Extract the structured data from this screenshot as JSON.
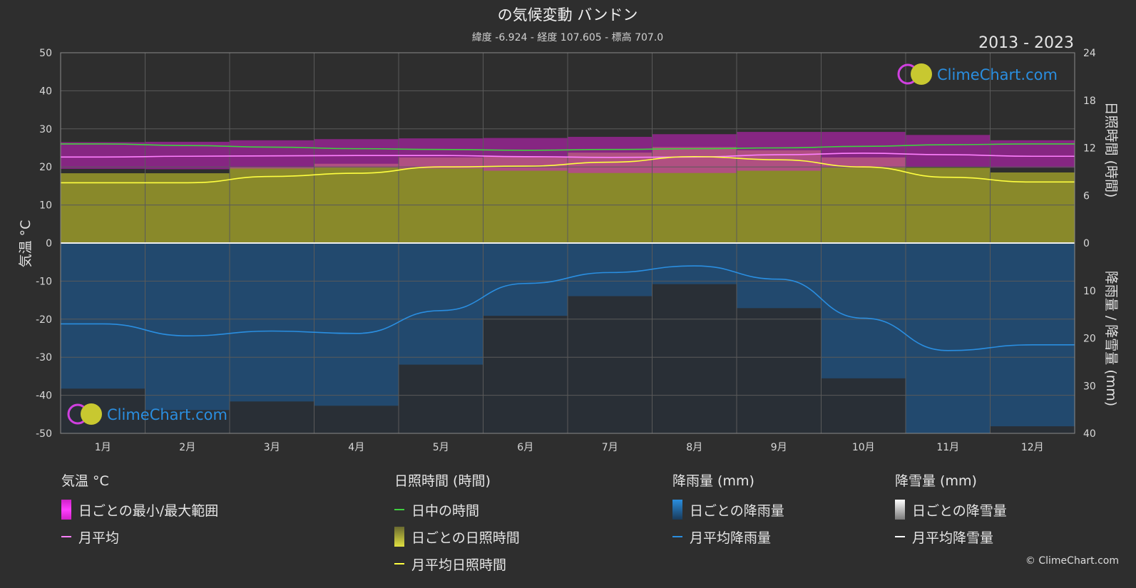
{
  "header": {
    "title": "の気候変動 バンドン",
    "subtitle": "緯度 -6.924 - 経度 107.605 - 標高 707.0",
    "years": "2013 - 2023"
  },
  "logo_text": "ClimeChart.com",
  "copyright": "© ClimeChart.com",
  "colors": {
    "background": "#2e2e2e",
    "temp_band": "#d020c8",
    "temp_mean": "#ff80ff",
    "daylight": "#40d040",
    "sunshine_band": "#a8a82a",
    "sunshine_mean": "#ffff40",
    "rain": "#1f6fb8",
    "rain_mean": "#2a8ee0",
    "snow_mean": "#ffffff",
    "logo": "#2a8ee0"
  },
  "chart_data": {
    "type": "line",
    "months": [
      "1月",
      "2月",
      "3月",
      "4月",
      "5月",
      "6月",
      "7月",
      "8月",
      "9月",
      "10月",
      "11月",
      "12月"
    ],
    "left_axis": {
      "label": "気温 °C",
      "range": [
        -50,
        50
      ],
      "ticks": [
        "50",
        "40",
        "30",
        "20",
        "10",
        "0",
        "-10",
        "-20",
        "-30",
        "-40",
        "-50"
      ]
    },
    "right_axis_top": {
      "label": "日照時間 (時間)",
      "range": [
        0,
        24
      ],
      "ticks": [
        "24",
        "18",
        "12",
        "6",
        "0"
      ]
    },
    "right_axis_bottom": {
      "label": "降雨量 / 降雪量 (mm)",
      "range": [
        0,
        40
      ],
      "ticks": [
        "0",
        "10",
        "20",
        "30",
        "40"
      ]
    },
    "series": [
      {
        "name": "日中の時間",
        "unit": "hours",
        "values": [
          12.5,
          12.3,
          12.1,
          11.9,
          11.8,
          11.7,
          11.8,
          11.9,
          12.0,
          12.2,
          12.4,
          12.5
        ]
      },
      {
        "name": "月平均日照時間",
        "unit": "hours",
        "values": [
          7.6,
          7.6,
          8.4,
          8.8,
          9.6,
          9.7,
          10.2,
          10.9,
          10.5,
          9.6,
          8.3,
          7.7
        ]
      },
      {
        "name": "月平均",
        "unit": "°C",
        "values": [
          22.6,
          22.8,
          22.9,
          23.0,
          23.0,
          22.7,
          22.5,
          22.6,
          23.2,
          23.6,
          23.2,
          22.8
        ]
      },
      {
        "name": "日ごとの最小/最大範囲",
        "unit": "°C",
        "min": [
          19.5,
          19.4,
          19.6,
          19.8,
          19.6,
          19.0,
          18.4,
          18.4,
          19.0,
          19.8,
          20.0,
          19.8
        ],
        "max": [
          26.5,
          26.6,
          27.0,
          27.3,
          27.5,
          27.6,
          27.9,
          28.6,
          29.2,
          29.2,
          28.4,
          27.0
        ]
      },
      {
        "name": "月平均降雨量",
        "unit": "mm",
        "values": [
          17.0,
          19.5,
          18.5,
          19.0,
          14.2,
          8.5,
          6.2,
          4.8,
          7.6,
          15.8,
          22.6,
          21.4
        ]
      },
      {
        "name": "月平均降雪量",
        "unit": "mm",
        "values": [
          0,
          0,
          0,
          0,
          0,
          0,
          0,
          0,
          0,
          0,
          0,
          0
        ]
      }
    ]
  },
  "legend": {
    "temp": {
      "title": "気温 °C",
      "items": [
        "日ごとの最小/最大範囲",
        "月平均"
      ]
    },
    "sun": {
      "title": "日照時間 (時間)",
      "items": [
        "日中の時間",
        "日ごとの日照時間",
        "月平均日照時間"
      ]
    },
    "rain": {
      "title": "降雨量 (mm)",
      "items": [
        "日ごとの降雨量",
        "月平均降雨量"
      ]
    },
    "snow": {
      "title": "降雪量 (mm)",
      "items": [
        "日ごとの降雪量",
        "月平均降雪量"
      ]
    }
  }
}
